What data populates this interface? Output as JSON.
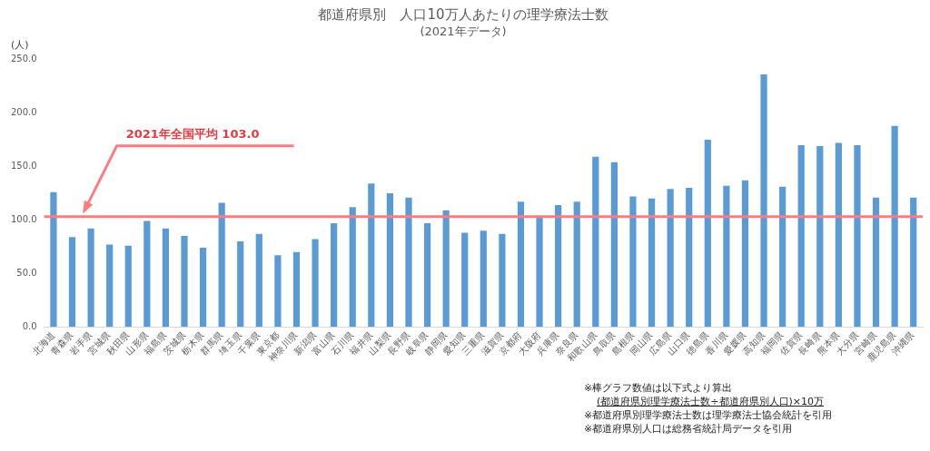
{
  "chart_data": {
    "type": "bar",
    "title": "都道府県別　人口10万人あたりの理学療法士数",
    "subtitle": "(2021年データ)",
    "y_label": "(人)",
    "categories": [
      "北海道",
      "青森県",
      "岩手県",
      "宮城県",
      "秋田県",
      "山形県",
      "福島県",
      "茨城県",
      "栃木県",
      "群馬県",
      "埼玉県",
      "千葉県",
      "東京都",
      "神奈川県",
      "新潟県",
      "富山県",
      "石川県",
      "福井県",
      "山梨県",
      "長野県",
      "岐阜県",
      "静岡県",
      "愛知県",
      "三重県",
      "滋賀県",
      "京都府",
      "大阪府",
      "兵庫県",
      "奈良県",
      "和歌山県",
      "鳥取県",
      "島根県",
      "岡山県",
      "広島県",
      "山口県",
      "徳島県",
      "香川県",
      "愛媛県",
      "高知県",
      "福岡県",
      "佐賀県",
      "長崎県",
      "熊本県",
      "大分県",
      "宮崎県",
      "鹿児島県",
      "沖縄県"
    ],
    "values": [
      126,
      84,
      92,
      77,
      76,
      99,
      92,
      85,
      74,
      116,
      80,
      87,
      67,
      70,
      82,
      97,
      112,
      134,
      125,
      121,
      97,
      109,
      88,
      90,
      87,
      117,
      104,
      114,
      117,
      159,
      154,
      122,
      120,
      129,
      130,
      175,
      132,
      137,
      236,
      131,
      170,
      169,
      172,
      170,
      121,
      188,
      121
    ],
    "color": "#5b9bd5",
    "ylim": [
      0,
      250
    ],
    "yticks": [
      {
        "value": 0,
        "label": "0.0"
      },
      {
        "value": 50,
        "label": "50.0"
      },
      {
        "value": 100,
        "label": "100.0"
      },
      {
        "value": 150,
        "label": "150.0"
      },
      {
        "value": 200,
        "label": "200.0"
      },
      {
        "value": 250,
        "label": "250.0"
      }
    ],
    "grid": false,
    "reference_line": {
      "value": 103.0,
      "label": "2021年全国平均 103.0",
      "color": "#ff7c80"
    },
    "notes": [
      "※棒グラフ数値は以下式より算出",
      "(都道府県別理学療法士数÷都道府県別人口)×10万",
      "※都道府県別理学療法士数は理学療法士協会統計を引用",
      "※都道府県別人口は総務省統計局データを引用"
    ]
  }
}
